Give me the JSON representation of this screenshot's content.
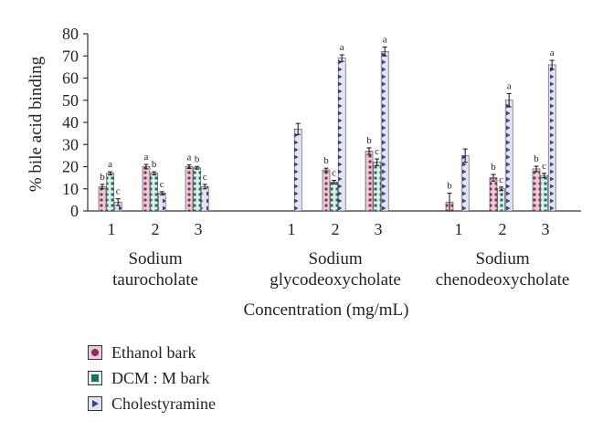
{
  "chart_data": {
    "type": "bar",
    "ylabel": "% bile acid binding",
    "xlabel": "Concentration (mg/mL)",
    "ylim": [
      0,
      80
    ],
    "yticks": [
      "0",
      "10",
      "20",
      "30",
      "40",
      "50",
      "60",
      "70",
      "80"
    ],
    "grid": false,
    "legend_position": "bottom-left",
    "groups": [
      {
        "name_lines": [
          "Sodium",
          "taurocholate"
        ],
        "concentrations": [
          "1",
          "2",
          "3"
        ],
        "series": [
          {
            "name": "Ethanol bark",
            "values": [
              11,
              20,
              20
            ],
            "errors": [
              1,
              1,
              0.8
            ],
            "letters": [
              "b",
              "a",
              "a"
            ]
          },
          {
            "name": "DCM : M bark",
            "values": [
              17,
              17,
              19.5
            ],
            "errors": [
              0.7,
              0.7,
              0.6
            ],
            "letters": [
              "a",
              "b",
              "b"
            ]
          },
          {
            "name": "Cholestyramine",
            "values": [
              4,
              8,
              11
            ],
            "errors": [
              1.5,
              0.7,
              1
            ],
            "letters": [
              "c",
              "c",
              "c"
            ]
          }
        ]
      },
      {
        "name_lines": [
          "Sodium",
          "glycodeoxycholate"
        ],
        "concentrations": [
          "1",
          "2",
          "3"
        ],
        "series": [
          {
            "name": "Ethanol bark",
            "values": [
              null,
              18.5,
              27
            ],
            "errors": [
              null,
              0.8,
              1.5
            ],
            "letters": [
              "",
              "b",
              "b"
            ]
          },
          {
            "name": "DCM : M bark",
            "values": [
              null,
              13,
              22
            ],
            "errors": [
              null,
              0.8,
              1.5
            ],
            "letters": [
              "",
              "c",
              "c"
            ]
          },
          {
            "name": "Cholestyramine",
            "values": [
              37,
              69,
              72
            ],
            "errors": [
              2.5,
              1.5,
              2
            ],
            "letters": [
              "",
              "a",
              "a"
            ]
          }
        ]
      },
      {
        "name_lines": [
          "Sodium",
          "chenodeoxycholate"
        ],
        "concentrations": [
          "1",
          "2",
          "3"
        ],
        "series": [
          {
            "name": "Ethanol bark",
            "values": [
              4,
              15,
              19
            ],
            "errors": [
              4,
              1.5,
              1.2
            ],
            "letters": [
              "b",
              "b",
              "b"
            ]
          },
          {
            "name": "DCM : M bark",
            "values": [
              null,
              10,
              16
            ],
            "errors": [
              null,
              0.8,
              1
            ],
            "letters": [
              "",
              "c",
              "c"
            ]
          },
          {
            "name": "Cholestyramine",
            "values": [
              25,
              50,
              66
            ],
            "errors": [
              3,
              3,
              2
            ],
            "letters": [
              "",
              "a",
              "a"
            ]
          }
        ]
      }
    ],
    "legend": [
      "Ethanol bark",
      "DCM : M bark",
      "Cholestyramine"
    ],
    "colors": {
      "ethanol_fill": "#e9cbd7",
      "ethanol_dot": "#8a2d5e",
      "dcm_fill": "#dcefe9",
      "dcm_dot": "#1f6e5f",
      "chol_fill": "#e2e4f2",
      "chol_mark": "#3a3f8f",
      "axis": "#333333"
    }
  }
}
